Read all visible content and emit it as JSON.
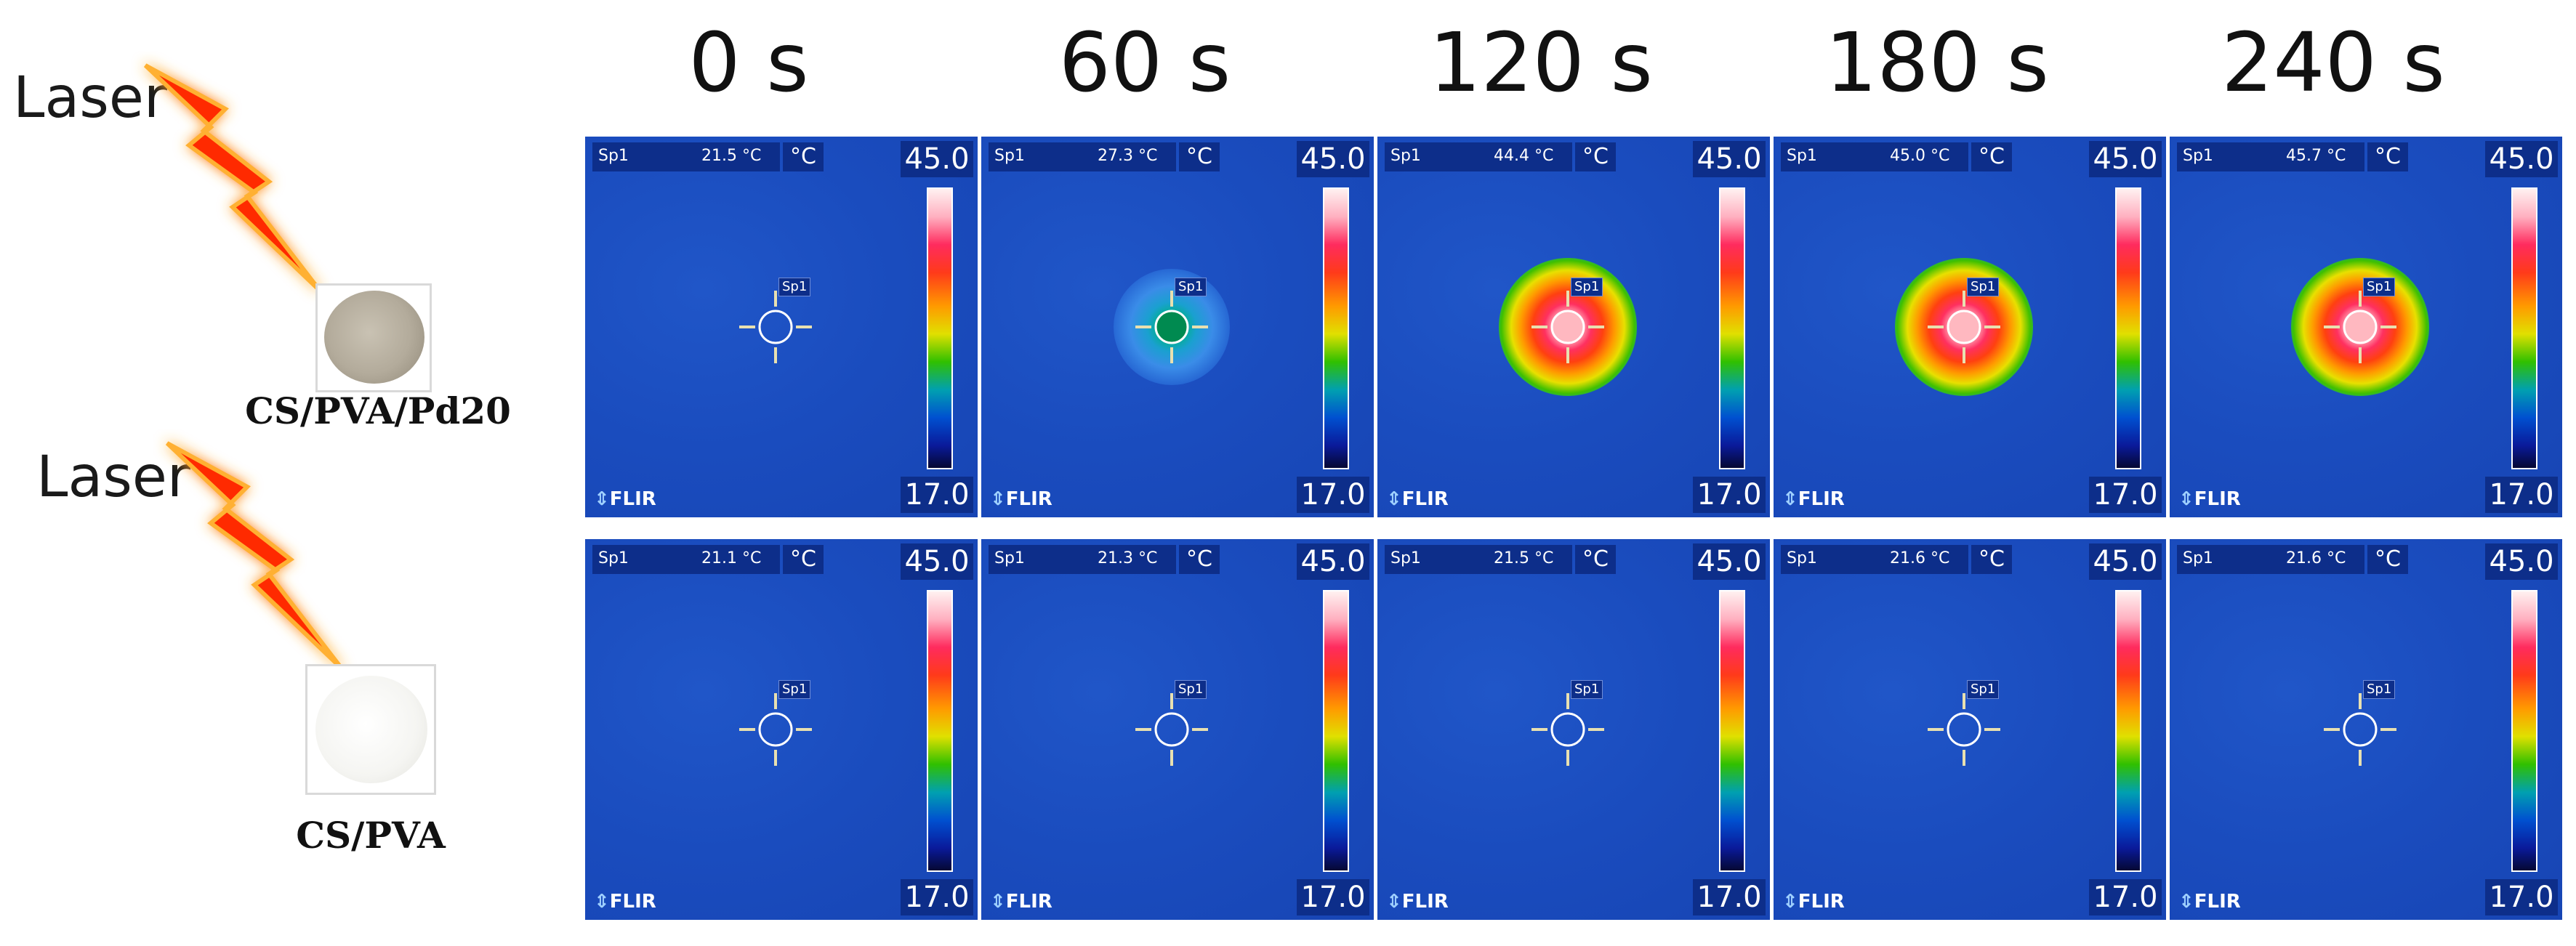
{
  "left": {
    "laser_label_top": "Laser",
    "laser_label_bottom": "Laser",
    "sample_top_label": "CS/PVA/Pd20",
    "sample_bottom_label": "CS/PVA"
  },
  "headers": [
    "0 s",
    "60 s",
    "120 s",
    "180 s",
    "240 s"
  ],
  "panel_common": {
    "spot_label": "Sp1",
    "unit": "°C",
    "scale_max": "45.0",
    "scale_min": "17.0",
    "brand": "FLIR",
    "brand_mark": "⇕",
    "colors": {
      "background": "#1a4fc0",
      "overlay": "#0d2e8a",
      "laser": "#ff1a00",
      "sample_pd": "#b8b0a0",
      "sample_plain": "#f7f7f4"
    }
  },
  "rows": [
    {
      "name": "CS/PVA/Pd20",
      "readings": [
        "21.5 °C",
        "27.3 °C",
        "44.4 °C",
        "45.0 °C",
        "45.7 °C"
      ],
      "hotspot": [
        "none",
        "mild",
        "hot",
        "hot",
        "hot"
      ]
    },
    {
      "name": "CS/PVA",
      "readings": [
        "21.1 °C",
        "21.3 °C",
        "21.5 °C",
        "21.6 °C",
        "21.6 °C"
      ],
      "hotspot": [
        "none",
        "none",
        "none",
        "none",
        "none"
      ]
    }
  ]
}
